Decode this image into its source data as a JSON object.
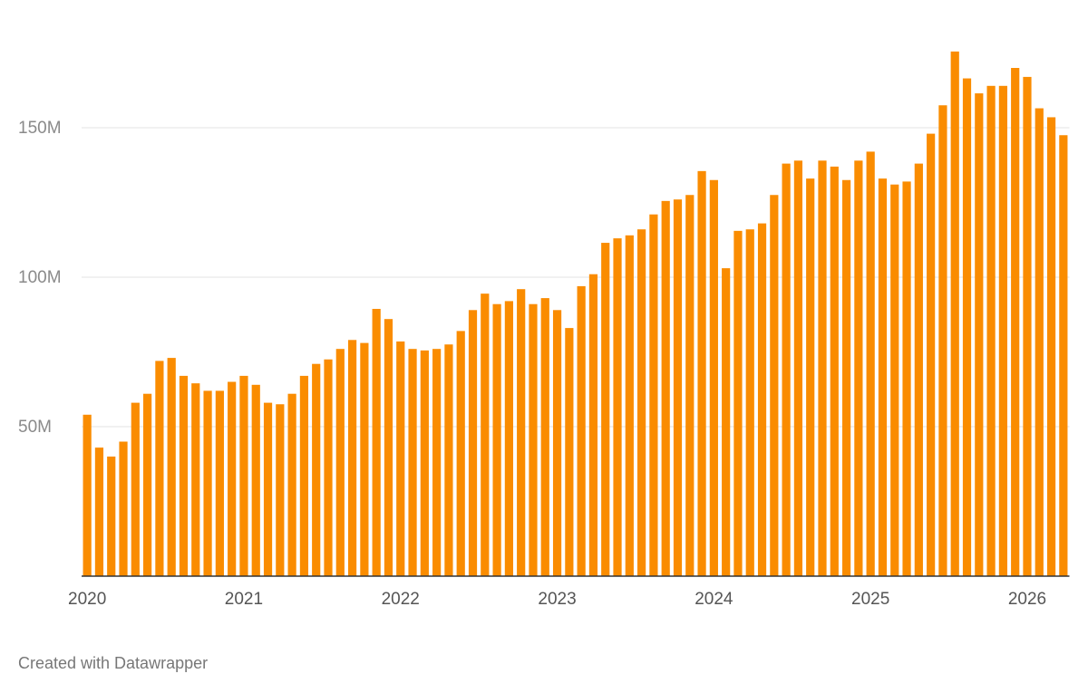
{
  "chart_data": {
    "type": "bar",
    "categories": [
      "2020",
      null,
      null,
      null,
      null,
      null,
      null,
      null,
      null,
      null,
      null,
      null,
      null,
      "2021",
      null,
      null,
      null,
      null,
      null,
      null,
      null,
      null,
      null,
      null,
      null,
      null,
      "2022",
      null,
      null,
      null,
      null,
      null,
      null,
      null,
      null,
      null,
      null,
      null,
      null,
      "2023",
      null,
      null,
      null,
      null,
      null,
      null,
      null,
      null,
      null,
      null,
      null,
      null,
      "2024",
      null,
      null,
      null,
      null,
      null,
      null,
      null,
      null,
      null,
      null,
      null,
      null,
      "2025",
      null,
      null,
      null,
      null,
      null,
      null,
      null,
      null,
      null,
      null,
      null,
      null,
      "2026",
      null,
      null,
      null
    ],
    "values": [
      54000000,
      43000000,
      40000000,
      45000000,
      58000000,
      61000000,
      72000000,
      73000000,
      67000000,
      64500000,
      62000000,
      62000000,
      65000000,
      67000000,
      64000000,
      58000000,
      57500000,
      61000000,
      67000000,
      71000000,
      72500000,
      76000000,
      79000000,
      78000000,
      89400000,
      86000000,
      78500000,
      76000000,
      75500000,
      76000000,
      77500000,
      82000000,
      89000000,
      94500000,
      91000000,
      92000000,
      96000000,
      91000000,
      93000000,
      89000000,
      83000000,
      97000000,
      101000000,
      111500000,
      113000000,
      114000000,
      116000000,
      121000000,
      125500000,
      126000000,
      127500000,
      135500000,
      132500000,
      103000000,
      115500000,
      116000000,
      118000000,
      127500000,
      138000000,
      139000000,
      133000000,
      139000000,
      137000000,
      132500000,
      139000000,
      142000000,
      133000000,
      131000000,
      132000000,
      138000000,
      148000000,
      157500000,
      175500000,
      166500000,
      161500000,
      164000000,
      164000000,
      170000000,
      167000000,
      156500000,
      153500000,
      147500000
    ],
    "color": "#fa8c00",
    "ylim": [
      0,
      180000000
    ],
    "yticks": [
      {
        "value": 50000000,
        "label": "50M"
      },
      {
        "value": 100000000,
        "label": "100M"
      },
      {
        "value": 150000000,
        "label": "150M"
      }
    ],
    "grid": true,
    "credit": "Created with Datawrapper"
  }
}
